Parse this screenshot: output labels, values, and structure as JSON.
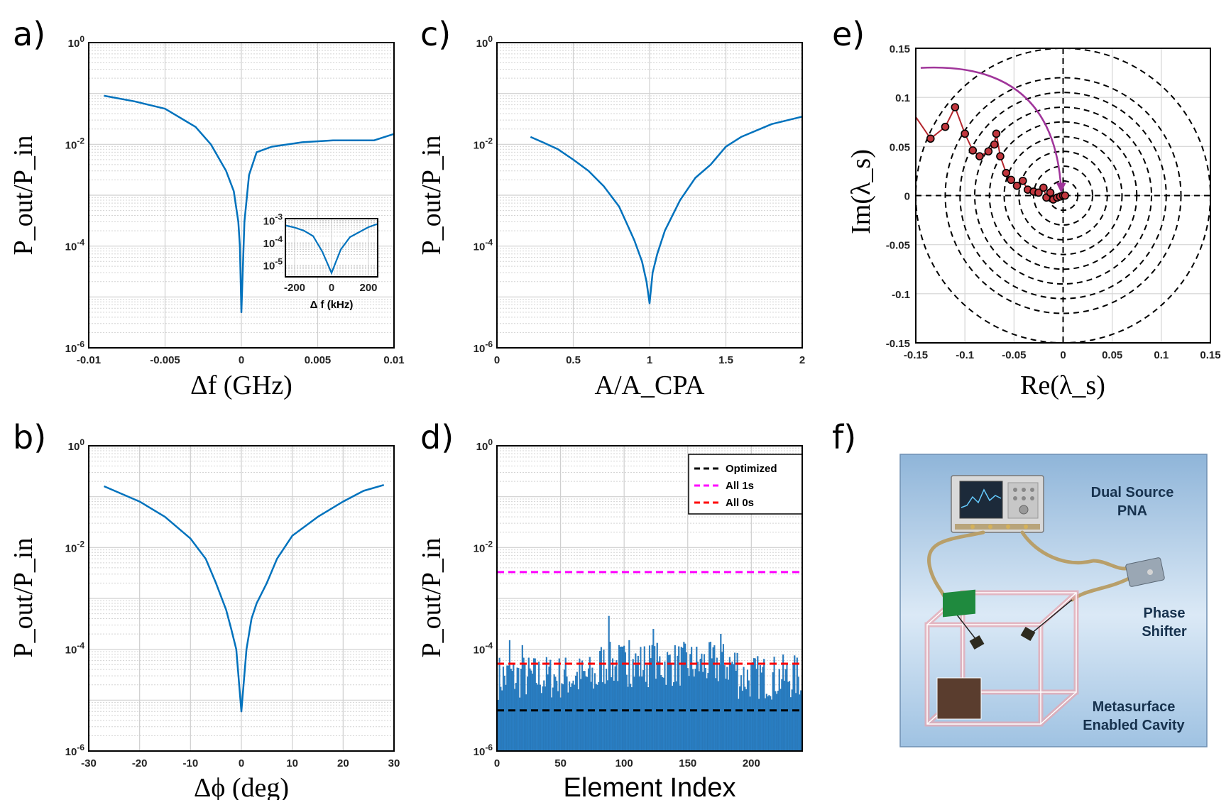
{
  "panels": {
    "a": {
      "tag": "a)",
      "ylabel": "P_out/P_in",
      "xlabel": "Δf (GHz)",
      "xticks": [
        "-0.01",
        "-0.005",
        "0",
        "0.005",
        "0.01"
      ]
    },
    "b": {
      "tag": "b)",
      "ylabel": "P_out/P_in",
      "xlabel": "Δϕ (deg)",
      "xticks": [
        "-30",
        "-20",
        "-10",
        "0",
        "10",
        "20",
        "30"
      ]
    },
    "c": {
      "tag": "c)",
      "ylabel": "P_out/P_in",
      "xlabel": "A/A_CPA",
      "xticks": [
        "0",
        "0.5",
        "1",
        "1.5",
        "2"
      ]
    },
    "d": {
      "tag": "d)",
      "ylabel": "P_out/P_in",
      "xlabel": "Element Index",
      "xticks": [
        "0",
        "50",
        "100",
        "150",
        "200"
      ]
    },
    "e": {
      "tag": "e)",
      "ylabel": "Im(λ_s)",
      "xlabel": "Re(λ_s)",
      "ticks": [
        "-0.15",
        "-0.1",
        "-0.05",
        "0",
        "0.05",
        "0.1",
        "0.15"
      ]
    },
    "f": {
      "tag": "f)",
      "labels": {
        "pna_1": "Dual Source",
        "pna_2": "PNA",
        "phase_1": "Phase",
        "phase_2": "Shifter",
        "meta_1": "Metasurface",
        "meta_2": "Enabled Cavity"
      }
    }
  },
  "log_ticks": [
    {
      "base": "10",
      "exp": "0"
    },
    {
      "base": "10",
      "exp": "-2"
    },
    {
      "base": "10",
      "exp": "-4"
    },
    {
      "base": "10",
      "exp": "-6"
    }
  ],
  "inset": {
    "xlabel": "Δ f (kHz)",
    "xticks": [
      "-200",
      "0",
      "200"
    ],
    "yticks": [
      {
        "base": "10",
        "exp": "-3"
      },
      {
        "base": "10",
        "exp": "-4"
      },
      {
        "base": "10",
        "exp": "-5"
      }
    ]
  },
  "legend": [
    {
      "name": "Optimized",
      "color": "#000000"
    },
    {
      "name": "All 1s",
      "color": "#ff00ff"
    },
    {
      "name": "All 0s",
      "color": "#ff0000"
    }
  ],
  "colors": {
    "line": "#0072bd",
    "bar": "#2a7fc4",
    "arc": "#a0359a",
    "trace": "#b3262d",
    "marker": "#c0363d"
  },
  "chart_data": [
    {
      "id": "a",
      "type": "line",
      "xlabel": "Δf (GHz)",
      "ylabel": "Pout/Pin",
      "xlim": [
        -0.01,
        0.01
      ],
      "ylim": [
        1e-06,
        1
      ],
      "yscale": "log",
      "grid": true,
      "x": [
        -0.009,
        -0.007,
        -0.005,
        -0.003,
        -0.002,
        -0.001,
        -0.0005,
        -0.0002,
        -0.0001,
        0,
        0.0002,
        0.0005,
        0.001,
        0.002,
        0.004,
        0.006,
        0.0087,
        0.01
      ],
      "y": [
        0.09,
        0.07,
        0.05,
        0.022,
        0.01,
        0.003,
        0.0012,
        0.0003,
        0.0001,
        5e-06,
        0.0003,
        0.0025,
        0.007,
        0.009,
        0.011,
        0.012,
        0.012,
        0.016
      ]
    },
    {
      "id": "a-inset",
      "type": "line",
      "xlabel": "Δ f (kHz)",
      "xlim": [
        -250,
        250
      ],
      "ylim": [
        3e-06,
        0.0012
      ],
      "yscale": "log",
      "x": [
        -250,
        -200,
        -150,
        -100,
        -50,
        0,
        50,
        100,
        150,
        200,
        250
      ],
      "y": [
        0.0006,
        0.00048,
        0.00035,
        0.0002,
        4e-05,
        4.5e-06,
        5e-05,
        0.00018,
        0.0003,
        0.0005,
        0.0007
      ]
    },
    {
      "id": "b",
      "type": "line",
      "xlabel": "Δϕ (deg)",
      "ylabel": "Pout/Pin",
      "xlim": [
        -30,
        30
      ],
      "ylim": [
        1e-06,
        1
      ],
      "yscale": "log",
      "grid": true,
      "x": [
        -27,
        -20,
        -15,
        -10,
        -7,
        -5,
        -3,
        -2,
        -1,
        0,
        1,
        2,
        3,
        5,
        7,
        10,
        15,
        20,
        24,
        28
      ],
      "y": [
        0.16,
        0.08,
        0.04,
        0.015,
        0.006,
        0.002,
        0.0006,
        0.00025,
        0.0001,
        6e-06,
        0.0001,
        0.0004,
        0.0008,
        0.002,
        0.006,
        0.017,
        0.04,
        0.08,
        0.13,
        0.17
      ]
    },
    {
      "id": "c",
      "type": "line",
      "xlabel": "A/A_CPA",
      "ylabel": "Pout/Pin",
      "xlim": [
        0,
        2
      ],
      "ylim": [
        1e-06,
        1
      ],
      "yscale": "log",
      "grid": true,
      "x": [
        0.22,
        0.3,
        0.4,
        0.5,
        0.6,
        0.7,
        0.8,
        0.85,
        0.9,
        0.95,
        0.98,
        1.0,
        1.02,
        1.05,
        1.1,
        1.2,
        1.3,
        1.4,
        1.5,
        1.6,
        1.8,
        2.0
      ],
      "y": [
        0.014,
        0.011,
        0.008,
        0.005,
        0.003,
        0.0015,
        0.0006,
        0.00028,
        0.00013,
        5e-05,
        2e-05,
        7.5e-06,
        3e-05,
        7e-05,
        0.0002,
        0.0008,
        0.0022,
        0.004,
        0.009,
        0.014,
        0.025,
        0.035
      ]
    },
    {
      "id": "d",
      "type": "bar",
      "xlabel": "Element Index",
      "ylabel": "Pout/Pin",
      "xlim": [
        0,
        240
      ],
      "ylim": [
        1e-06,
        1
      ],
      "yscale": "log",
      "grid": true,
      "series_note": "per-element bars fluctuating between about 1e-5 and 4.5e-4",
      "peaks": [
        {
          "x": 88,
          "y": 0.00045
        },
        {
          "x": 104,
          "y": 0.00015
        },
        {
          "x": 123,
          "y": 0.00025
        },
        {
          "x": 176,
          "y": 0.0002
        },
        {
          "x": 20,
          "y": 0.00012
        },
        {
          "x": 10,
          "y": 0.00015
        }
      ],
      "hlines": [
        {
          "name": "Optimized",
          "y": 6.3e-06
        },
        {
          "name": "All 1s",
          "y": 0.0033
        },
        {
          "name": "All 0s",
          "y": 5.2e-05
        }
      ]
    },
    {
      "id": "e",
      "type": "scatter",
      "xlabel": "Re(λs)",
      "ylabel": "Im(λs)",
      "xlim": [
        -0.15,
        0.15
      ],
      "ylim": [
        -0.15,
        0.15
      ],
      "grid": true,
      "circle_radii": [
        0.015,
        0.03,
        0.045,
        0.06,
        0.075,
        0.09,
        0.105,
        0.12,
        0.15
      ],
      "points": [
        [
          -0.15,
          0.08
        ],
        [
          -0.135,
          0.058
        ],
        [
          -0.12,
          0.07
        ],
        [
          -0.11,
          0.09
        ],
        [
          -0.1,
          0.063
        ],
        [
          -0.092,
          0.046
        ],
        [
          -0.085,
          0.04
        ],
        [
          -0.076,
          0.045
        ],
        [
          -0.07,
          0.052
        ],
        [
          -0.068,
          0.063
        ],
        [
          -0.064,
          0.04
        ],
        [
          -0.058,
          0.023
        ],
        [
          -0.053,
          0.016
        ],
        [
          -0.047,
          0.01
        ],
        [
          -0.041,
          0.015
        ],
        [
          -0.036,
          0.006
        ],
        [
          -0.03,
          0.004
        ],
        [
          -0.025,
          0.003
        ],
        [
          -0.02,
          0.008
        ],
        [
          -0.017,
          -0.002
        ],
        [
          -0.013,
          0.003
        ],
        [
          -0.01,
          -0.004
        ],
        [
          -0.006,
          -0.002
        ],
        [
          -0.003,
          -0.001
        ],
        [
          0.0,
          0.0
        ],
        [
          0.002,
          0.0
        ]
      ],
      "arc": {
        "from": [
          -0.145,
          0.13
        ],
        "to": [
          -0.002,
          0.0
        ]
      }
    }
  ]
}
